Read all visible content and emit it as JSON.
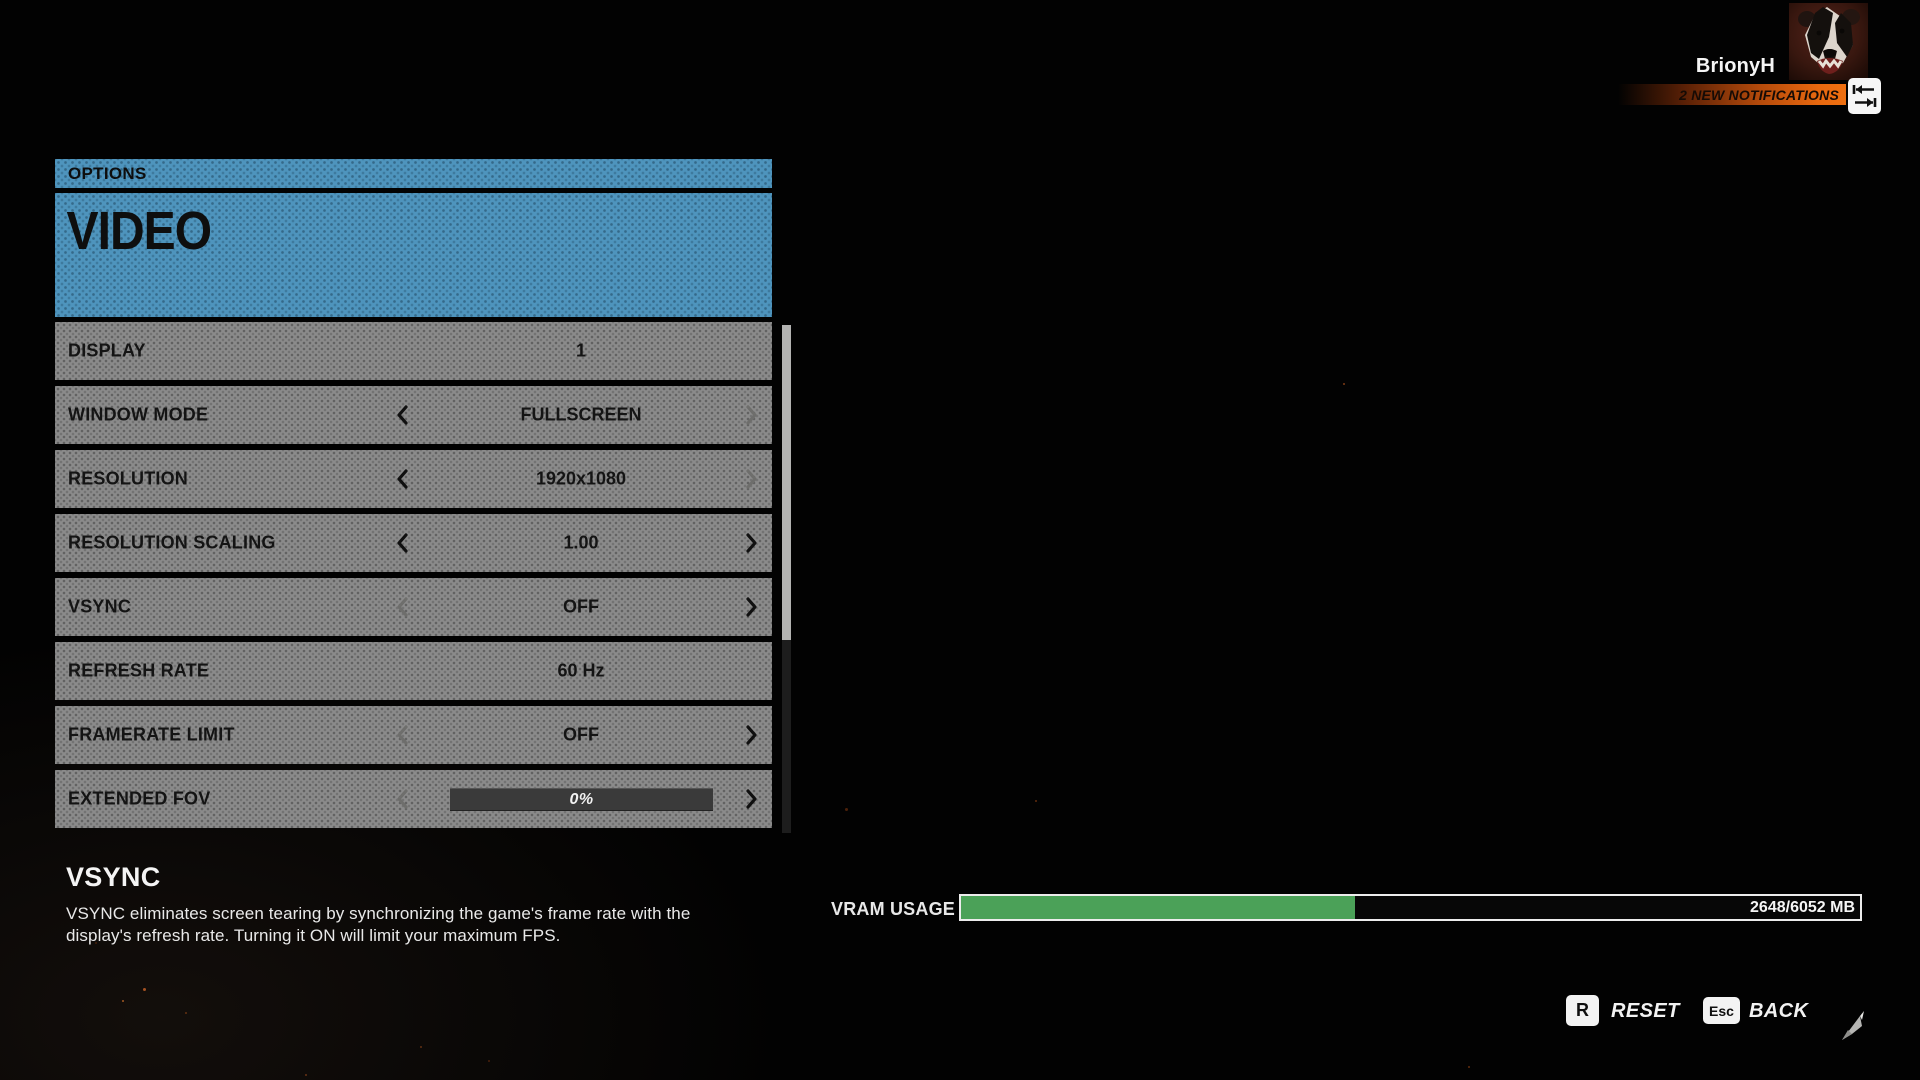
{
  "user": {
    "name": "BrionyH",
    "notifications": "2 NEW NOTIFICATIONS"
  },
  "header": {
    "breadcrumb": "OPTIONS",
    "title": "VIDEO"
  },
  "settings": {
    "rows": [
      {
        "label": "DISPLAY",
        "value": "1",
        "type": "static",
        "left_arrow": "none",
        "right_arrow": "none"
      },
      {
        "label": "WINDOW MODE",
        "value": "FULLSCREEN",
        "type": "selector",
        "left_arrow": "enabled",
        "right_arrow": "disabled"
      },
      {
        "label": "RESOLUTION",
        "value": "1920x1080",
        "type": "selector",
        "left_arrow": "enabled",
        "right_arrow": "disabled"
      },
      {
        "label": "RESOLUTION SCALING",
        "value": "1.00",
        "type": "selector",
        "left_arrow": "enabled",
        "right_arrow": "enabled"
      },
      {
        "label": "VSYNC",
        "value": "OFF",
        "type": "selector",
        "left_arrow": "disabled",
        "right_arrow": "enabled"
      },
      {
        "label": "REFRESH RATE",
        "value": "60 Hz",
        "type": "static",
        "left_arrow": "none",
        "right_arrow": "none"
      },
      {
        "label": "FRAMERATE LIMIT",
        "value": "OFF",
        "type": "selector",
        "left_arrow": "disabled",
        "right_arrow": "enabled"
      },
      {
        "label": "EXTENDED FOV",
        "value": "0%",
        "type": "slider",
        "left_arrow": "disabled",
        "right_arrow": "enabled",
        "slider_percent": 0
      }
    ]
  },
  "info": {
    "title": "VSYNC",
    "description_lines": [
      "VSYNC eliminates screen tearing by synchronizing the game's frame rate with the",
      "display's refresh rate. Turning it ON will limit your maximum FPS."
    ]
  },
  "vram": {
    "label": "VRAM USAGE",
    "display": "2648/6052 MB",
    "used_mb": 2648,
    "total_mb": 6052,
    "fill_percent": 43.8
  },
  "footer": {
    "reset_key": "R",
    "reset_label": "RESET",
    "back_key": "Esc",
    "back_label": "BACK"
  },
  "scrollbar": {
    "thumb_percent": 62
  },
  "colors": {
    "panel_blue": "#4e94bd",
    "row_gray": "#8b8b8b",
    "accent_orange": "#ef7011",
    "vram_green": "#4ba158"
  }
}
